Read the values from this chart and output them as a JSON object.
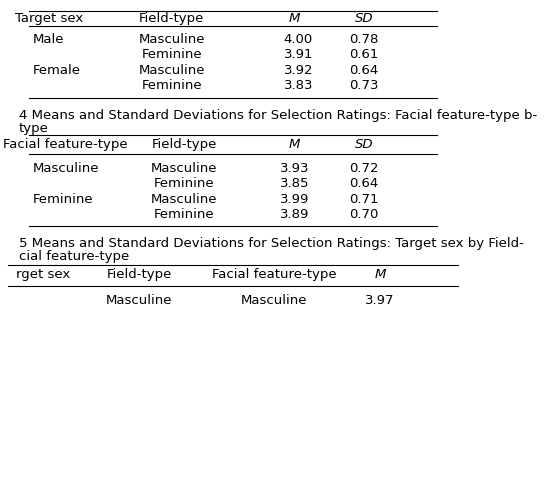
{
  "table3": {
    "headers": [
      "Target sex",
      "Field-type",
      "M",
      "SD"
    ],
    "rows": [
      [
        "Male",
        "Masculine",
        "4.00",
        "0.78"
      ],
      [
        "",
        "Feminine",
        "3.91",
        "0.61"
      ],
      [
        "Female",
        "Masculine",
        "3.92",
        "0.64"
      ],
      [
        "",
        "Feminine",
        "3.83",
        "0.73"
      ]
    ]
  },
  "table4": {
    "label": "4 Means and Standard Deviations for Selection Ratings: Facial feature-type b-\ntype",
    "headers": [
      "Facial feature-type",
      "Field-type",
      "M",
      "SD"
    ],
    "rows": [
      [
        "Masculine",
        "Masculine",
        "3.93",
        "0.72"
      ],
      [
        "",
        "Feminine",
        "3.85",
        "0.64"
      ],
      [
        "Feminine",
        "Masculine",
        "3.99",
        "0.71"
      ],
      [
        "",
        "Feminine",
        "3.89",
        "0.70"
      ]
    ]
  },
  "table5": {
    "label": "5 Means and Standard Deviations for Selection Ratings: Target sex by Field-\ncial feature-type",
    "headers": [
      "rget sex",
      "Field-type",
      "Facial feature-type",
      "M"
    ],
    "partial_row": [
      "",
      "Masculine",
      "Masculine",
      "3.97"
    ]
  },
  "bg_color": "#ffffff",
  "text_color": "#000000",
  "font_size": 9.5
}
